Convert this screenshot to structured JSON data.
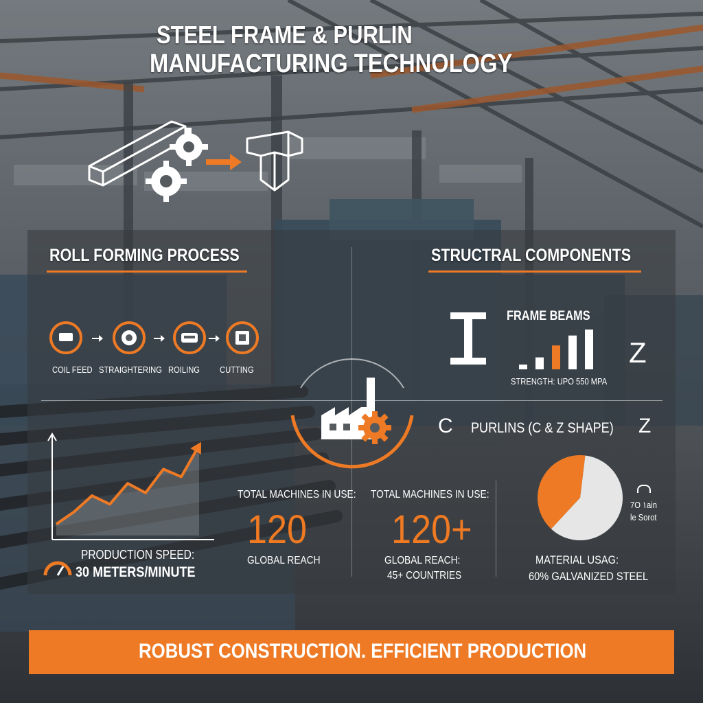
{
  "title": {
    "line1": "STEEL FRAME & PURLIN",
    "line2": "MANUFACTURING TECHNOLOGY"
  },
  "roll_forming": {
    "heading": "ROLL FORMING PROCESS",
    "steps": [
      "COIL FEED",
      "STRAIGHTERING",
      "ROILING",
      "CUTTING"
    ]
  },
  "structural": {
    "heading": "STRUCTRAL COMPONENTS",
    "frame_beams": "FRAME BEAMS",
    "strength": "STRENGTH: UPO 550 MPA",
    "purlins": "PURLINS (C & Z SHAPE)",
    "c_letter": "C",
    "z_letter_upper": "Z",
    "z_letter_lower": "Z"
  },
  "production": {
    "label": "PRODUCTION SPEED:",
    "value": "30 METERS/MINUTE",
    "trend": [
      0.12,
      0.25,
      0.42,
      0.33,
      0.55,
      0.45,
      0.7,
      0.62,
      0.95
    ]
  },
  "stats": {
    "left_label": "TOTAL MACHINES IN USE:",
    "left_value": "120",
    "left_sub": "GLOBAL REACH",
    "right_label": "TOTAL MACHINES IN USE:",
    "right_value": "120+",
    "right_sub1": "GLOBAL REACH:",
    "right_sub2": "45+ COUNTRIES"
  },
  "material": {
    "pie_label1": "7O ۱ain",
    "pie_label2": "le Sorot",
    "label": "MATERIAL USAG:",
    "value": "60% GALVANIZED STEEL",
    "galvanized_share": 0.6
  },
  "beam_bars": [
    0.12,
    0.3,
    0.6,
    0.85,
    1.0
  ],
  "banner": "ROBUST CONSTRUCTION. EFFICIENT PRODUCTION",
  "colors": {
    "accent": "#ee7a25",
    "white": "#ffffff",
    "panel": "#373a3e"
  }
}
